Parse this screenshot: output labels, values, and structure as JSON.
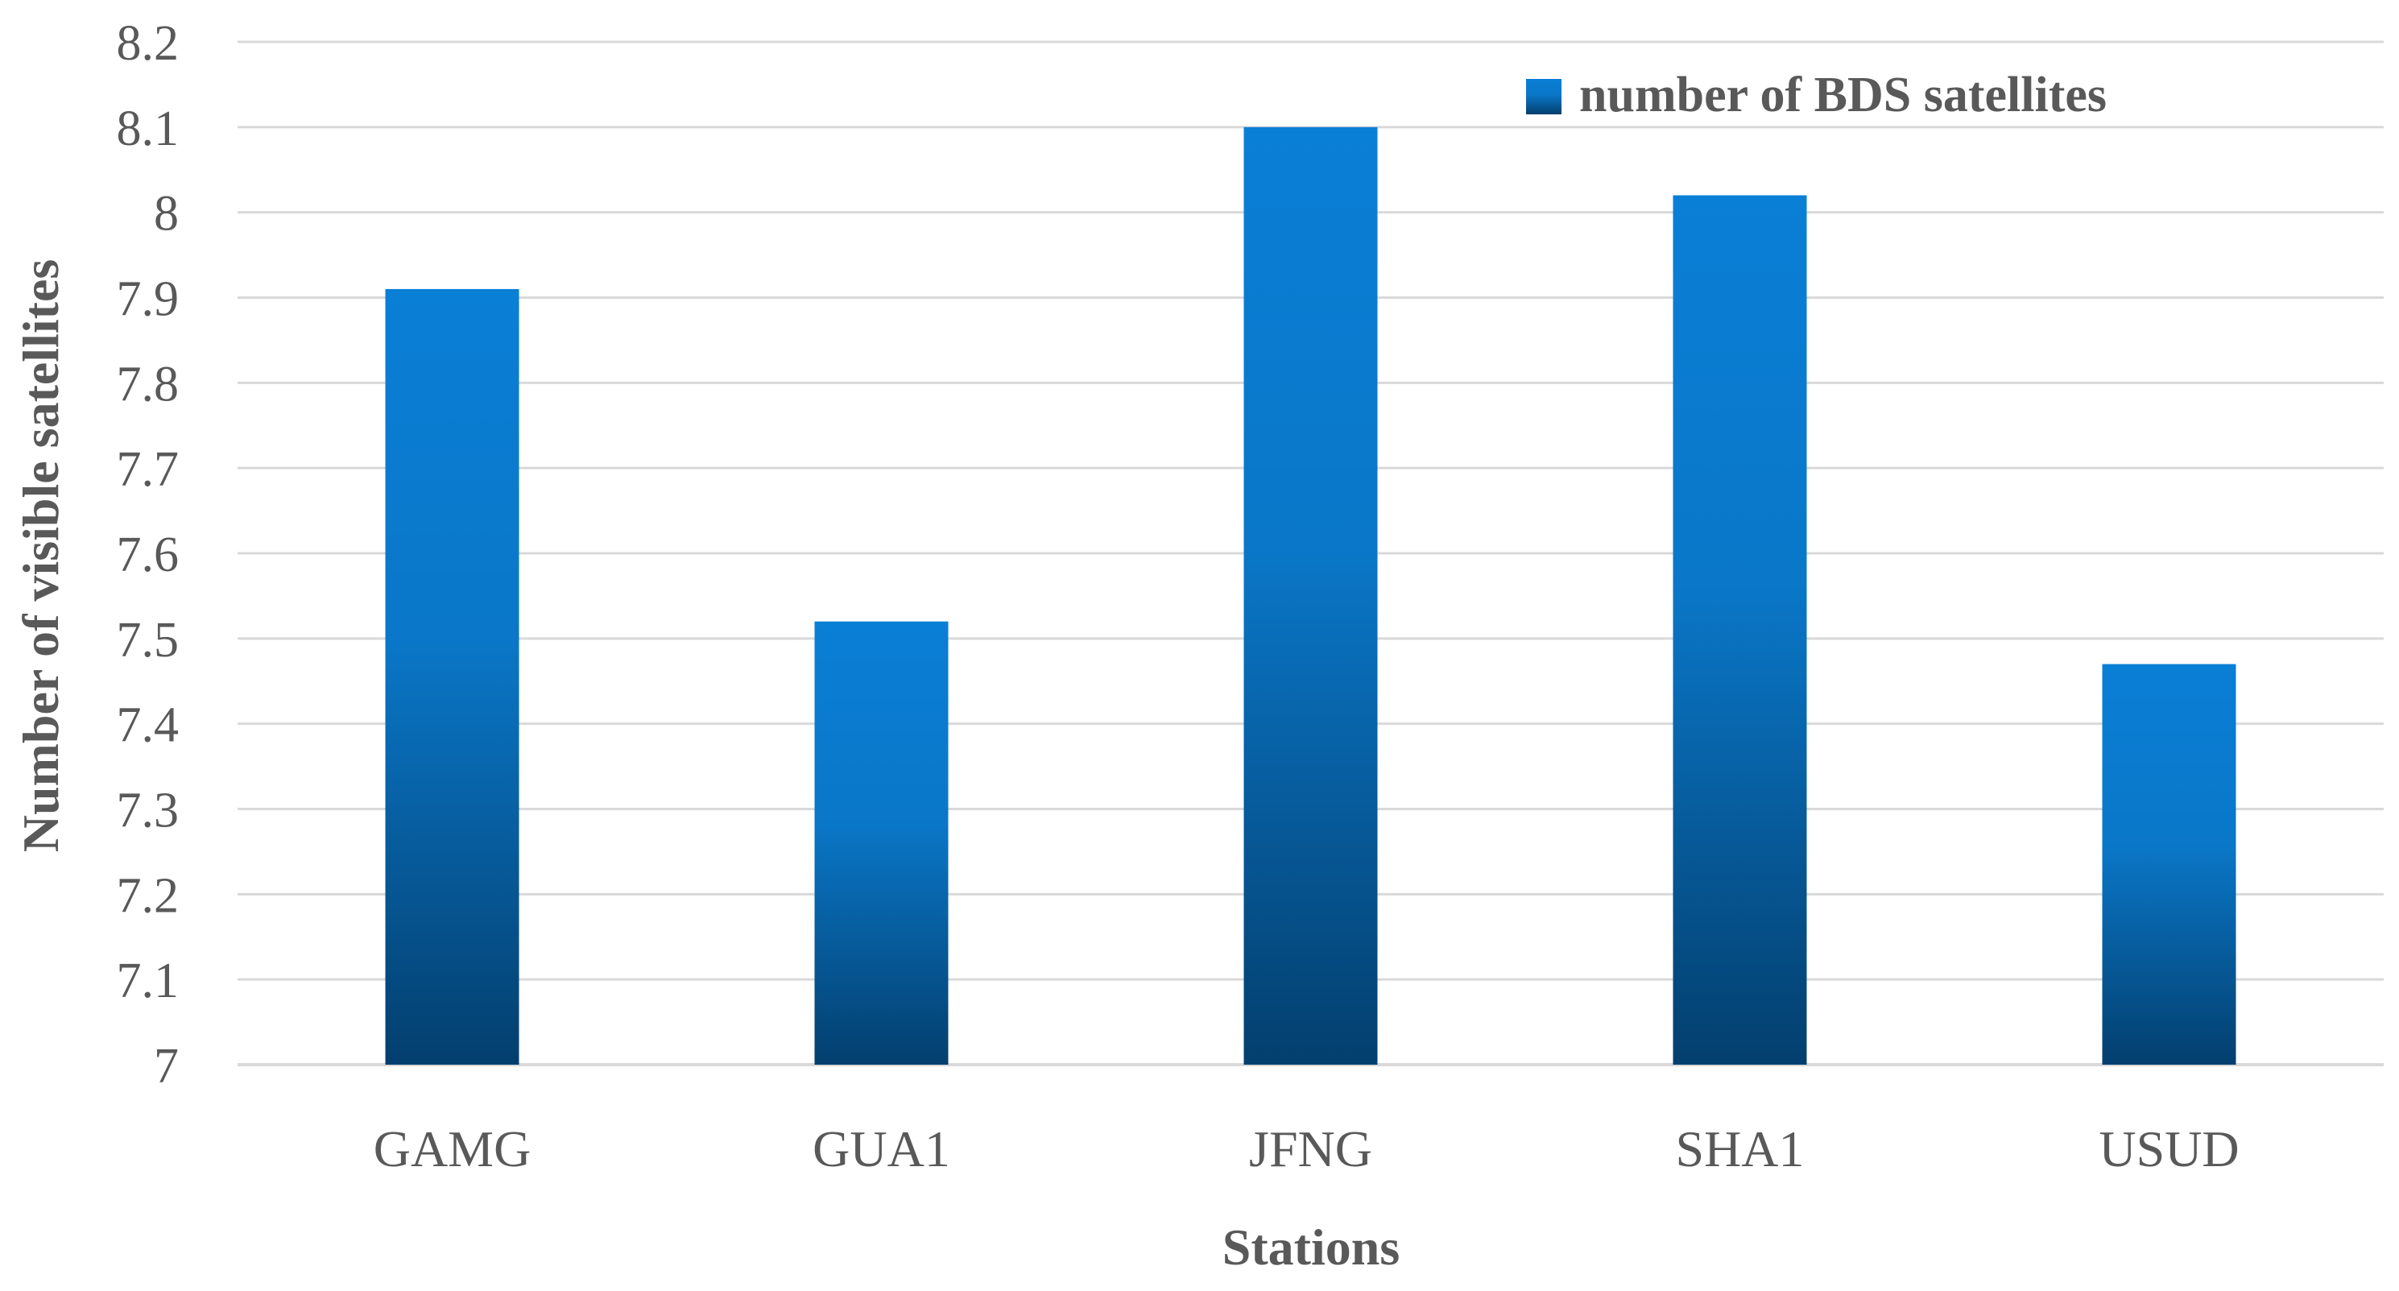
{
  "chart_data": {
    "type": "bar",
    "title": "",
    "xlabel": "Stations",
    "ylabel": "Number of visible satellites",
    "categories": [
      "GAMG",
      "GUA1",
      "JFNG",
      "SHA1",
      "USUD"
    ],
    "series": [
      {
        "name": "number of BDS satellites",
        "values": [
          7.91,
          7.52,
          8.1,
          8.02,
          7.47
        ]
      }
    ],
    "ylim": [
      7,
      8.2
    ],
    "yticks": [
      "7",
      "7.1",
      "7.2",
      "7.3",
      "7.4",
      "7.5",
      "7.6",
      "7.7",
      "7.8",
      "7.9",
      "8",
      "8.1",
      "8.2"
    ],
    "grid": true,
    "legend_position": "top-right",
    "colors": {
      "bar_top": "#0a7fd6",
      "bar_bottom": "#033f6e",
      "grid": "#d9d9d9",
      "axis_text": "#595959"
    }
  }
}
